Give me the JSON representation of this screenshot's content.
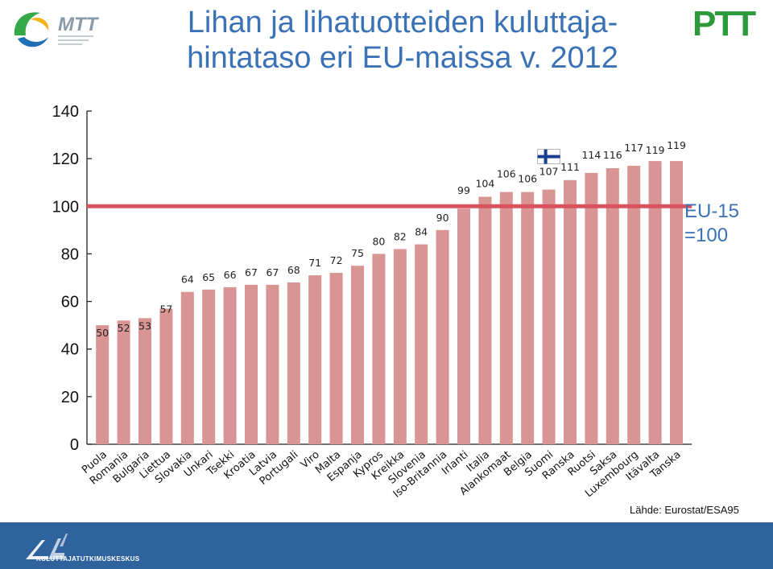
{
  "title_line1": "Lihan ja lihatuotteiden kuluttaja-",
  "title_line2": "hintataso eri EU-maissa v. 2012",
  "logo_left_text": "MTT",
  "logo_right_text": "PTT",
  "eu_label_line1": "EU-15",
  "eu_label_line2": "=100",
  "source": "Lähde: Eurostat/ESA95",
  "footer_text": "KULUTTAJATUTKIMUSKESKUS",
  "colors": {
    "bar": "#d99594",
    "reference_line": "#d9535f",
    "title": "#3a72b5",
    "footer": "#2f639e"
  },
  "chart_data": {
    "type": "bar",
    "title": "Lihan ja lihatuotteiden kuluttajahintataso eri EU-maissa v. 2012",
    "categories": [
      "Puola",
      "Romania",
      "Bulgaria",
      "Liettua",
      "Slovakia",
      "Unkari",
      "Tsekki",
      "Kroatia",
      "Latvia",
      "Portugali",
      "Viro",
      "Malta",
      "Espanja",
      "Kypros",
      "Kreikka",
      "Slovenia",
      "Iso-Britannia",
      "Irlanti",
      "Italia",
      "Alankomaat",
      "Belgia",
      "Suomi",
      "Ranska",
      "Ruotsi",
      "Saksa",
      "Luxembourg",
      "Itävalta",
      "Tanska"
    ],
    "values": [
      50,
      52,
      53,
      57,
      64,
      65,
      66,
      67,
      67,
      68,
      71,
      72,
      75,
      80,
      82,
      84,
      90,
      99,
      104,
      106,
      106,
      107,
      111,
      114,
      116,
      117,
      119,
      119
    ],
    "y_ticks": [
      0,
      20,
      40,
      60,
      80,
      100,
      120,
      140
    ],
    "ylim": [
      0,
      140
    ],
    "reference_line": 100,
    "highlight": "Suomi",
    "grid": false
  }
}
